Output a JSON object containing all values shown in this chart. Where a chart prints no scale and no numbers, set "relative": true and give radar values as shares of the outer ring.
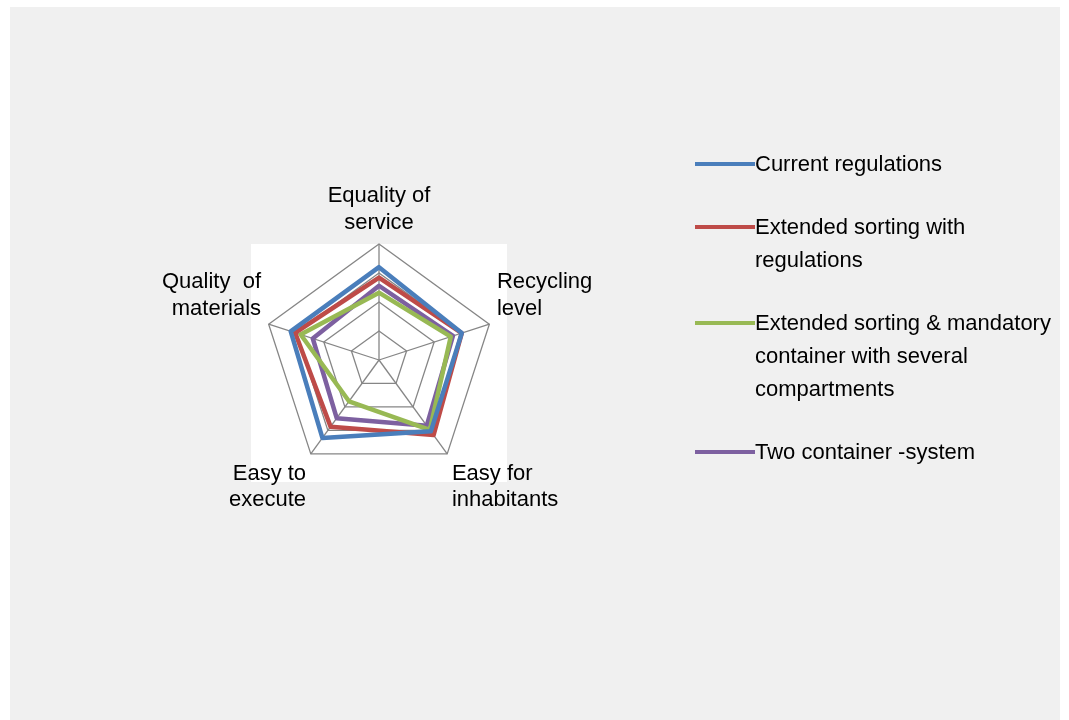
{
  "chart_data": {
    "type": "radar",
    "relative": true,
    "categories": [
      "Equality of service",
      "Recycling level",
      "Easy for inhabitants",
      "Easy to execute",
      "Quality  of materials"
    ],
    "series": [
      {
        "name": "Current regulations",
        "color": "#4a7ebb",
        "values": [
          0.8,
          0.75,
          0.76,
          0.83,
          0.8
        ]
      },
      {
        "name": "Extended sorting with regulations",
        "color": "#be4b48",
        "values": [
          0.71,
          0.75,
          0.8,
          0.71,
          0.76
        ]
      },
      {
        "name": "Extended sorting & mandatory container with several compartments",
        "color": "#98b954",
        "values": [
          0.58,
          0.65,
          0.745,
          0.44,
          0.71
        ]
      },
      {
        "name": "Two container -system",
        "color": "#7d60a0",
        "values": [
          0.64,
          0.67,
          0.7,
          0.62,
          0.6
        ]
      }
    ],
    "legend": "right",
    "marker": "none",
    "grid": true
  }
}
